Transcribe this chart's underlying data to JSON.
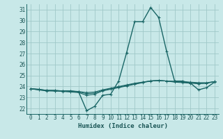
{
  "xlabel": "Humidex (Indice chaleur)",
  "xlim": [
    -0.5,
    23.5
  ],
  "ylim": [
    21.5,
    31.5
  ],
  "yticks": [
    22,
    23,
    24,
    25,
    26,
    27,
    28,
    29,
    30,
    31
  ],
  "xticks": [
    0,
    1,
    2,
    3,
    4,
    5,
    6,
    7,
    8,
    9,
    10,
    11,
    12,
    13,
    14,
    15,
    16,
    17,
    18,
    19,
    20,
    21,
    22,
    23
  ],
  "background_color": "#c8e8e8",
  "grid_color": "#a0c8c8",
  "line_color": "#1a6666",
  "lines": [
    [
      23.8,
      23.7,
      23.6,
      23.6,
      23.6,
      23.6,
      23.5,
      21.8,
      22.2,
      23.2,
      23.3,
      24.5,
      27.1,
      29.9,
      29.9,
      31.2,
      30.3,
      27.2,
      24.5,
      24.5,
      24.3,
      23.7,
      23.9,
      24.4
    ],
    [
      23.8,
      23.7,
      23.65,
      23.6,
      23.55,
      23.5,
      23.45,
      23.2,
      23.3,
      23.6,
      23.75,
      23.9,
      24.05,
      24.2,
      24.35,
      24.5,
      24.55,
      24.5,
      24.4,
      24.35,
      24.3,
      24.25,
      24.3,
      24.45
    ],
    [
      23.8,
      23.75,
      23.65,
      23.65,
      23.6,
      23.55,
      23.5,
      23.35,
      23.4,
      23.65,
      23.8,
      23.95,
      24.1,
      24.25,
      24.4,
      24.5,
      24.55,
      24.5,
      24.45,
      24.4,
      24.35,
      24.3,
      24.3,
      24.45
    ],
    [
      23.8,
      23.75,
      23.65,
      23.65,
      23.6,
      23.6,
      23.55,
      23.45,
      23.5,
      23.7,
      23.85,
      24.0,
      24.15,
      24.3,
      24.4,
      24.52,
      24.55,
      24.5,
      24.48,
      24.45,
      24.4,
      24.35,
      24.35,
      24.45
    ]
  ]
}
